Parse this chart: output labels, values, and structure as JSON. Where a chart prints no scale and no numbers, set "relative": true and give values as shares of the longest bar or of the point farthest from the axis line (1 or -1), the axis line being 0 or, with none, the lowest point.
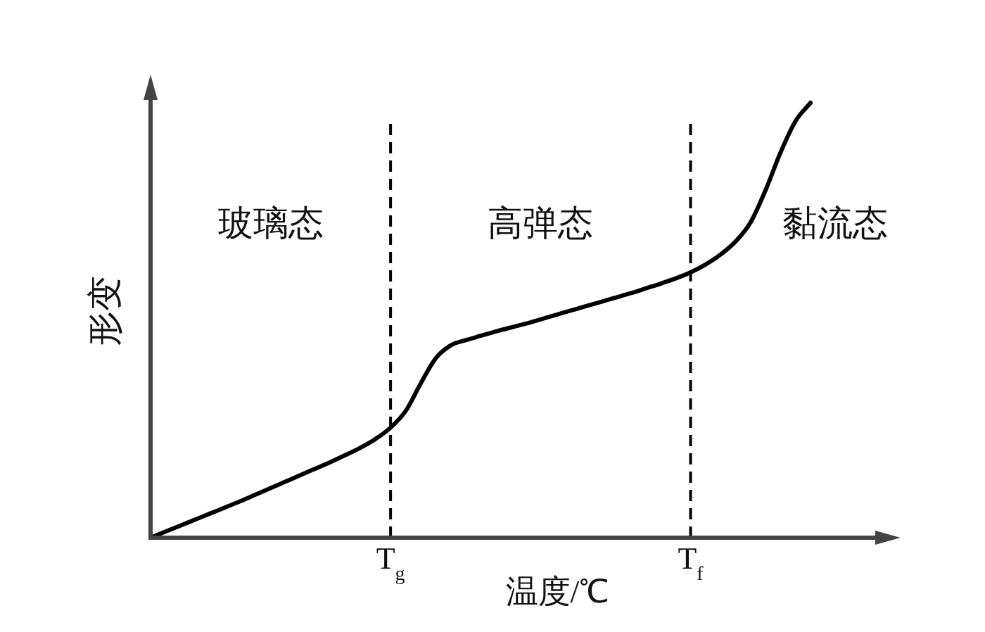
{
  "chart_data": {
    "type": "line",
    "relative": true,
    "xlabel": "温度/℃",
    "ylabel": "形变",
    "categories": [
      null,
      null,
      null,
      null,
      null,
      null,
      null,
      null,
      null,
      null,
      null,
      null,
      null,
      null,
      null,
      null,
      "T$_{g}$",
      null,
      null,
      null,
      null,
      null,
      null,
      null,
      null,
      null,
      null,
      null,
      null,
      null,
      null,
      null,
      null,
      null,
      null,
      null,
      "T$_{f}$",
      null,
      null,
      null,
      null,
      null,
      null,
      null,
      null,
      null,
      null,
      null,
      null,
      null,
      null
    ],
    "values": [
      0,
      0.014,
      0.028,
      0.042,
      0.056,
      0.07,
      0.084,
      0.099,
      0.114,
      0.129,
      0.144,
      0.159,
      0.174,
      0.19,
      0.207,
      0.227,
      0.253,
      0.291,
      0.354,
      0.412,
      0.442,
      0.454,
      0.464,
      0.474,
      0.483,
      0.492,
      0.502,
      0.512,
      0.522,
      0.532,
      0.542,
      0.552,
      0.562,
      0.573,
      0.584,
      0.596,
      0.61,
      0.628,
      0.651,
      0.681,
      0.725,
      0.799,
      0.886,
      0.958,
      1,
      null,
      null,
      null,
      null,
      null,
      null
    ],
    "color": "#000000",
    "ref_lines": [
      {
        "axis": "x",
        "value": "T$_{g}$",
        "line_style": "dashed",
        "color": "#000000"
      },
      {
        "axis": "x",
        "value": "T$_{f}$",
        "line_style": "dashed",
        "color": "#000000"
      }
    ],
    "annotations": [
      "玻璃态",
      "高弹态",
      "黏流态"
    ]
  }
}
